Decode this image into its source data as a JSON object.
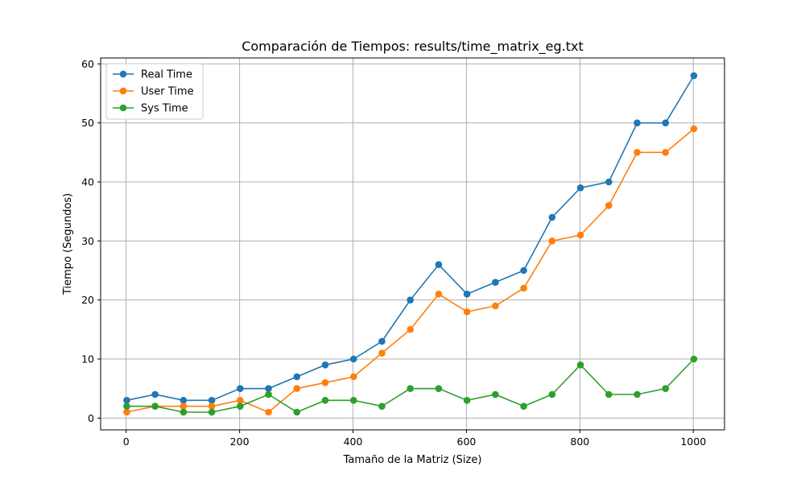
{
  "chart_data": {
    "type": "line",
    "title": "Comparación de Tiempos: results/time_matrix_eg.txt",
    "xlabel": "Tamaño de la Matriz (Size)",
    "ylabel": "Tiempo (Segundos)",
    "xlim": [
      -45,
      1055
    ],
    "ylim": [
      -2,
      61
    ],
    "xticks": [
      0,
      200,
      400,
      600,
      800,
      1000
    ],
    "yticks": [
      0,
      10,
      20,
      30,
      40,
      50,
      60
    ],
    "grid": true,
    "legend_position": "top-left",
    "x": [
      1,
      51,
      101,
      151,
      201,
      251,
      301,
      351,
      401,
      451,
      501,
      551,
      601,
      651,
      701,
      751,
      801,
      851,
      901,
      951,
      1001
    ],
    "series": [
      {
        "name": "Real Time",
        "color": "#1f77b4",
        "values": [
          3,
          4,
          3,
          3,
          5,
          5,
          7,
          9,
          10,
          13,
          20,
          26,
          21,
          23,
          25,
          34,
          39,
          40,
          50,
          50,
          58
        ]
      },
      {
        "name": "User Time",
        "color": "#ff7f0e",
        "values": [
          1,
          2,
          2,
          2,
          3,
          1,
          5,
          6,
          7,
          11,
          15,
          21,
          18,
          19,
          22,
          30,
          31,
          36,
          45,
          45,
          49
        ]
      },
      {
        "name": "Sys Time",
        "color": "#2ca02c",
        "values": [
          2,
          2,
          1,
          1,
          2,
          4,
          1,
          3,
          3,
          2,
          5,
          5,
          3,
          4,
          2,
          4,
          9,
          4,
          4,
          5,
          10
        ]
      }
    ]
  }
}
